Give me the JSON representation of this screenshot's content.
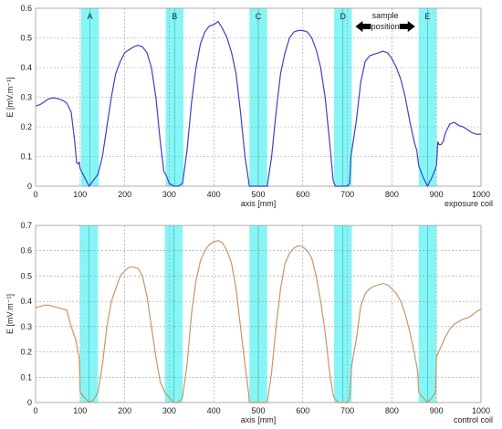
{
  "chart_data": [
    {
      "type": "line",
      "id": "top",
      "xlabel": "axis [mm]",
      "ylabel": "E [mV.m⁻¹]",
      "caption": "exposure coil",
      "xlim": [
        0,
        1000
      ],
      "ylim": [
        0,
        0.6
      ],
      "xticks": [
        0,
        100,
        200,
        300,
        400,
        500,
        600,
        700,
        800,
        900,
        1000
      ],
      "yticks": [
        0,
        0.1,
        0.2,
        0.3,
        0.4,
        0.5,
        0.6
      ],
      "xtick_labels": [
        "0",
        "100",
        "200",
        "300",
        "400",
        "500",
        "600",
        "700",
        "800",
        "900",
        "1000"
      ],
      "ytick_labels": [
        "0",
        "0.1",
        "0.2",
        "0.3",
        "0.4",
        "0.5",
        "0.6"
      ],
      "grid": true,
      "line_color": "#3f3fc8",
      "band_color": "#5ff2f2",
      "bands": [
        {
          "label": "A",
          "x0": 102,
          "x1": 142
        },
        {
          "label": "B",
          "x0": 292,
          "x1": 332
        },
        {
          "label": "C",
          "x0": 480,
          "x1": 520
        },
        {
          "label": "D",
          "x0": 670,
          "x1": 710
        },
        {
          "label": "E",
          "x0": 860,
          "x1": 900
        }
      ],
      "annotation": {
        "text_lines": [
          "sample",
          "position"
        ],
        "arrow_from": 718,
        "arrow_to": 852
      },
      "x": [
        0,
        10,
        20,
        30,
        40,
        50,
        60,
        70,
        80,
        88,
        92,
        95,
        98,
        100,
        103,
        110,
        120,
        130,
        140,
        150,
        160,
        170,
        180,
        190,
        200,
        210,
        220,
        230,
        240,
        250,
        260,
        270,
        280,
        288,
        292,
        295,
        300,
        310,
        320,
        330,
        340,
        350,
        360,
        370,
        380,
        390,
        400,
        410,
        420,
        430,
        440,
        450,
        460,
        470,
        478,
        480,
        482,
        490,
        500,
        510,
        520,
        530,
        540,
        550,
        560,
        570,
        580,
        590,
        600,
        610,
        620,
        630,
        640,
        650,
        660,
        668,
        670,
        673,
        680,
        690,
        700,
        705,
        708,
        710,
        720,
        730,
        740,
        750,
        760,
        770,
        780,
        790,
        800,
        810,
        820,
        830,
        840,
        850,
        856,
        860,
        870,
        880,
        890,
        898,
        900,
        903,
        906,
        910,
        915,
        920,
        930,
        940,
        950,
        960,
        970,
        980,
        990,
        1000
      ],
      "values": [
        0.27,
        0.275,
        0.285,
        0.295,
        0.298,
        0.295,
        0.29,
        0.28,
        0.25,
        0.15,
        0.08,
        0.075,
        0.08,
        0.06,
        0.05,
        0.03,
        0.0,
        0.02,
        0.04,
        0.1,
        0.2,
        0.3,
        0.38,
        0.42,
        0.45,
        0.46,
        0.47,
        0.475,
        0.47,
        0.45,
        0.4,
        0.3,
        0.15,
        0.05,
        0.04,
        0.03,
        0.01,
        0.0,
        0.0,
        0.01,
        0.12,
        0.28,
        0.4,
        0.48,
        0.52,
        0.54,
        0.545,
        0.555,
        0.53,
        0.5,
        0.45,
        0.38,
        0.25,
        0.1,
        0.02,
        0.0,
        0.0,
        0.0,
        0.0,
        0.0,
        0.0,
        0.1,
        0.25,
        0.38,
        0.45,
        0.5,
        0.52,
        0.525,
        0.525,
        0.52,
        0.5,
        0.46,
        0.4,
        0.3,
        0.15,
        0.02,
        0.01,
        0.0,
        0.0,
        0.0,
        0.0,
        0.01,
        0.1,
        0.12,
        0.22,
        0.35,
        0.42,
        0.44,
        0.445,
        0.45,
        0.455,
        0.45,
        0.43,
        0.4,
        0.36,
        0.3,
        0.22,
        0.15,
        0.12,
        0.07,
        0.03,
        0.0,
        0.03,
        0.06,
        0.07,
        0.15,
        0.14,
        0.14,
        0.15,
        0.18,
        0.21,
        0.215,
        0.205,
        0.2,
        0.19,
        0.18,
        0.175,
        0.175
      ]
    },
    {
      "type": "line",
      "id": "bottom",
      "xlabel": "axis [mm]",
      "ylabel": "E [mV.m⁻¹]",
      "caption": "control coil",
      "xlim": [
        0,
        1000
      ],
      "ylim": [
        0,
        0.7
      ],
      "xticks": [
        0,
        100,
        200,
        300,
        400,
        500,
        600,
        700,
        800,
        900,
        1000
      ],
      "yticks": [
        0,
        0.1,
        0.2,
        0.3,
        0.4,
        0.5,
        0.6,
        0.7
      ],
      "xtick_labels": [
        "0",
        "100",
        "200",
        "300",
        "400",
        "500",
        "600",
        "700",
        "800",
        "900",
        "1000"
      ],
      "ytick_labels": [
        "0",
        "0.1",
        "0.2",
        "0.3",
        "0.4",
        "0.5",
        "0.6",
        "0.7"
      ],
      "grid": true,
      "line_color": "#c8946a",
      "band_color": "#5ff2f2",
      "bands": [
        {
          "label": "",
          "x0": 100,
          "x1": 140
        },
        {
          "label": "",
          "x0": 290,
          "x1": 330
        },
        {
          "label": "",
          "x0": 480,
          "x1": 520
        },
        {
          "label": "",
          "x0": 670,
          "x1": 710
        },
        {
          "label": "",
          "x0": 860,
          "x1": 900
        }
      ],
      "x": [
        0,
        10,
        20,
        30,
        40,
        50,
        60,
        70,
        80,
        90,
        95,
        98,
        100,
        105,
        110,
        120,
        130,
        140,
        150,
        160,
        170,
        180,
        190,
        200,
        210,
        220,
        230,
        240,
        250,
        260,
        270,
        280,
        288,
        290,
        295,
        300,
        310,
        320,
        330,
        340,
        350,
        360,
        370,
        380,
        390,
        400,
        410,
        420,
        430,
        440,
        450,
        460,
        470,
        478,
        480,
        490,
        500,
        510,
        520,
        530,
        540,
        550,
        560,
        570,
        580,
        590,
        600,
        610,
        620,
        630,
        640,
        650,
        660,
        668,
        670,
        680,
        690,
        700,
        705,
        710,
        720,
        730,
        740,
        750,
        760,
        770,
        780,
        790,
        800,
        810,
        820,
        830,
        840,
        850,
        858,
        860,
        870,
        880,
        890,
        898,
        900,
        905,
        910,
        920,
        930,
        940,
        950,
        960,
        970,
        980,
        990,
        1000
      ],
      "values": [
        0.375,
        0.38,
        0.385,
        0.385,
        0.38,
        0.375,
        0.37,
        0.365,
        0.3,
        0.25,
        0.2,
        0.18,
        0.04,
        0.03,
        0.02,
        0.0,
        0.01,
        0.04,
        0.15,
        0.3,
        0.4,
        0.45,
        0.5,
        0.52,
        0.535,
        0.535,
        0.53,
        0.5,
        0.42,
        0.3,
        0.18,
        0.08,
        0.05,
        0.04,
        0.03,
        0.02,
        0.0,
        0.0,
        0.02,
        0.15,
        0.35,
        0.48,
        0.56,
        0.6,
        0.625,
        0.635,
        0.64,
        0.63,
        0.6,
        0.55,
        0.45,
        0.3,
        0.15,
        0.04,
        0.0,
        0.0,
        0.0,
        0.0,
        0.0,
        0.12,
        0.3,
        0.45,
        0.55,
        0.59,
        0.61,
        0.62,
        0.615,
        0.6,
        0.57,
        0.5,
        0.4,
        0.28,
        0.12,
        0.03,
        0.02,
        0.0,
        0.0,
        0.0,
        0.02,
        0.15,
        0.25,
        0.38,
        0.43,
        0.45,
        0.46,
        0.465,
        0.47,
        0.465,
        0.45,
        0.43,
        0.4,
        0.35,
        0.28,
        0.2,
        0.12,
        0.04,
        0.02,
        0.0,
        0.02,
        0.04,
        0.18,
        0.2,
        0.22,
        0.26,
        0.29,
        0.31,
        0.32,
        0.33,
        0.335,
        0.345,
        0.36,
        0.37
      ]
    }
  ]
}
